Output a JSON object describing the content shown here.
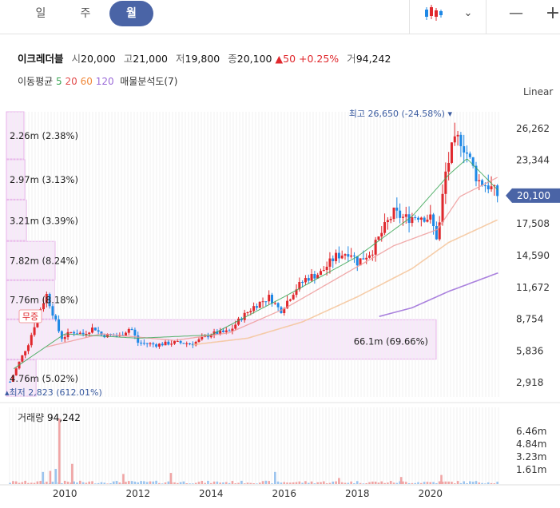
{
  "tabs": [
    {
      "label": "일",
      "active": false
    },
    {
      "label": "주",
      "active": false
    },
    {
      "label": "월",
      "active": true
    }
  ],
  "toolbar": {
    "chart_type_icon": "candlestick-icon",
    "dropdown_icon": "chevron-down-icon",
    "zoom_out_icon": "minus-icon",
    "zoom_in_icon": "plus-icon"
  },
  "quote": {
    "name": "이크레더블",
    "open_label": "시",
    "open": "20,000",
    "high_label": "고",
    "high": "21,000",
    "low_label": "저",
    "low": "19,800",
    "close_label": "종",
    "close": "20,100",
    "change": "▲50 +0.25%",
    "volume_label": "거",
    "volume": "94,242"
  },
  "indicators": {
    "label": "이동평균",
    "ma5": "5",
    "ma20": "20",
    "ma60": "60",
    "ma120": "120",
    "volume_profile": "매물분석도(7)"
  },
  "scale_mode": "Linear",
  "colors": {
    "up": "#e0282d",
    "down": "#1e88e5",
    "ma5": "#3aa655",
    "ma20": "#e24b4b",
    "ma60": "#f0883a",
    "ma120": "#9b6bd8",
    "profile": "#f3d5f5",
    "badge": "#4a64a6"
  },
  "chart_data": {
    "type": "candlestick",
    "x_ticks": [
      "2010",
      "2012",
      "2014",
      "2016",
      "2018",
      "2020"
    ],
    "y_ticks": [
      26262,
      23344,
      20100,
      17508,
      14590,
      11672,
      8754,
      5836,
      2918
    ],
    "ylim": [
      1600,
      27800
    ],
    "current_price": 20100,
    "current_price_label": "20,100",
    "high_annotation": "최고 26,650 (-24.58%)",
    "low_annotation": "최저 2,823 (612.01%)",
    "event_label": "무증",
    "volume_profile": [
      {
        "label": "2.26m (2.38%)",
        "share": 2.38,
        "price_low": 23400,
        "price_high": 27800
      },
      {
        "label": "2.97m (3.13%)",
        "share": 3.13,
        "price_low": 19700,
        "price_high": 23400
      },
      {
        "label": "3.21m (3.39%)",
        "share": 3.39,
        "price_low": 15900,
        "price_high": 19700
      },
      {
        "label": "7.82m (8.24%)",
        "share": 8.24,
        "price_low": 12300,
        "price_high": 15900
      },
      {
        "label": "7.76m (8.18%)",
        "share": 8.18,
        "price_low": 8700,
        "price_high": 12300
      },
      {
        "label": "66.1m (69.66%)",
        "share": 69.66,
        "price_low": 5000,
        "price_high": 8700
      },
      {
        "label": "4.76m (5.02%)",
        "share": 5.02,
        "price_low": 1600,
        "price_high": 5000
      }
    ],
    "close_anchors": [
      [
        2008.5,
        3000
      ],
      [
        2008.75,
        4800
      ],
      [
        2009.0,
        6500
      ],
      [
        2009.3,
        9500
      ],
      [
        2009.5,
        11000
      ],
      [
        2009.7,
        9000
      ],
      [
        2009.9,
        7000
      ],
      [
        2010.2,
        7600
      ],
      [
        2010.5,
        7400
      ],
      [
        2010.8,
        8000
      ],
      [
        2011.0,
        7300
      ],
      [
        2011.5,
        7200
      ],
      [
        2011.8,
        8000
      ],
      [
        2012.0,
        6600
      ],
      [
        2012.5,
        6400
      ],
      [
        2013.0,
        6600
      ],
      [
        2013.5,
        6500
      ],
      [
        2014.0,
        7400
      ],
      [
        2014.5,
        7600
      ],
      [
        2014.8,
        8800
      ],
      [
        2015.2,
        10000
      ],
      [
        2015.6,
        10800
      ],
      [
        2015.9,
        9500
      ],
      [
        2016.3,
        11500
      ],
      [
        2016.6,
        12500
      ],
      [
        2017.0,
        13000
      ],
      [
        2017.4,
        14500
      ],
      [
        2017.8,
        15000
      ],
      [
        2018.0,
        14000
      ],
      [
        2018.4,
        15000
      ],
      [
        2018.8,
        17500
      ],
      [
        2019.0,
        18500
      ],
      [
        2019.3,
        18000
      ],
      [
        2019.7,
        18300
      ],
      [
        2020.0,
        18000
      ],
      [
        2020.2,
        16000
      ],
      [
        2020.4,
        22000
      ],
      [
        2020.6,
        24500
      ],
      [
        2020.8,
        25500
      ],
      [
        2021.0,
        24000
      ],
      [
        2021.3,
        21500
      ],
      [
        2021.6,
        21000
      ],
      [
        2021.85,
        20100
      ]
    ],
    "ma_anchors": {
      "ma5": [
        [
          2008.6,
          4200
        ],
        [
          2010.0,
          7400
        ],
        [
          2012.0,
          7000
        ],
        [
          2014.0,
          7300
        ],
        [
          2016.0,
          10800
        ],
        [
          2018.0,
          14500
        ],
        [
          2019.5,
          18200
        ],
        [
          2020.5,
          22000
        ],
        [
          2021.0,
          23500
        ],
        [
          2021.85,
          20600
        ]
      ],
      "ma20": [
        [
          2009.5,
          6200
        ],
        [
          2011.0,
          7400
        ],
        [
          2013.0,
          6800
        ],
        [
          2014.5,
          7500
        ],
        [
          2016.0,
          9700
        ],
        [
          2017.5,
          12600
        ],
        [
          2019.0,
          15500
        ],
        [
          2020.2,
          17000
        ],
        [
          2020.8,
          20000
        ],
        [
          2021.85,
          21800
        ]
      ],
      "ma60": [
        [
          2013.5,
          6400
        ],
        [
          2015.0,
          7000
        ],
        [
          2016.5,
          8500
        ],
        [
          2018.0,
          10800
        ],
        [
          2019.5,
          13400
        ],
        [
          2020.5,
          15800
        ],
        [
          2021.85,
          17900
        ]
      ],
      "ma120": [
        [
          2018.6,
          9000
        ],
        [
          2019.5,
          9800
        ],
        [
          2020.5,
          11300
        ],
        [
          2021.85,
          13000
        ]
      ]
    },
    "volume": {
      "label": "거래량",
      "value": "94,242",
      "y_ticks": [
        "6.46m",
        "4.84m",
        "3.23m",
        "1.61m"
      ],
      "ylim_m": [
        0,
        7.6
      ],
      "spikes": [
        [
          2009.85,
          6.5,
          "up"
        ],
        [
          2010.2,
          2.0,
          "up"
        ],
        [
          2009.75,
          1.5,
          "down"
        ],
        [
          2009.6,
          1.3,
          "up"
        ],
        [
          2009.4,
          1.2,
          "down"
        ],
        [
          2011.6,
          1.0,
          "up"
        ],
        [
          2012.9,
          1.1,
          "up"
        ],
        [
          2015.75,
          1.2,
          "down"
        ],
        [
          2020.3,
          0.9,
          "up"
        ],
        [
          2019.2,
          0.7,
          "up"
        ],
        [
          2017.5,
          0.6,
          "up"
        ]
      ]
    }
  }
}
